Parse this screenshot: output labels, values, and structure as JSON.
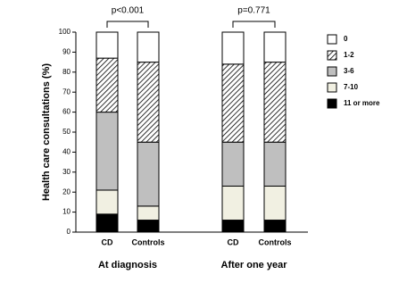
{
  "chart_data": {
    "type": "stacked_bar",
    "y_label": "Health care consultations (%)",
    "categories": [
      "CD",
      "Controls",
      "CD",
      "Controls"
    ],
    "groups": [
      "At diagnosis",
      "After one year"
    ],
    "annotations": [
      "p<0.001",
      "p=0.771"
    ],
    "series": [
      {
        "name": "11 or more",
        "color": "#000000",
        "values": [
          9,
          6,
          6,
          6
        ]
      },
      {
        "name": "7-10",
        "color": "#f1f0e2",
        "values": [
          12,
          7,
          17,
          17
        ]
      },
      {
        "name": "3-6",
        "color": "#bfbfbf",
        "values": [
          39,
          32,
          22,
          22
        ]
      },
      {
        "name": "1-2",
        "color": "#ffffff",
        "hatch": true,
        "values": [
          27,
          40,
          39,
          40
        ]
      },
      {
        "name": "0",
        "color": "#ffffff",
        "values": [
          13,
          15,
          16,
          15
        ]
      }
    ],
    "ylim": [
      0,
      100
    ],
    "yticks": [
      0,
      10,
      20,
      30,
      40,
      50,
      60,
      70,
      80,
      90,
      100
    ]
  }
}
